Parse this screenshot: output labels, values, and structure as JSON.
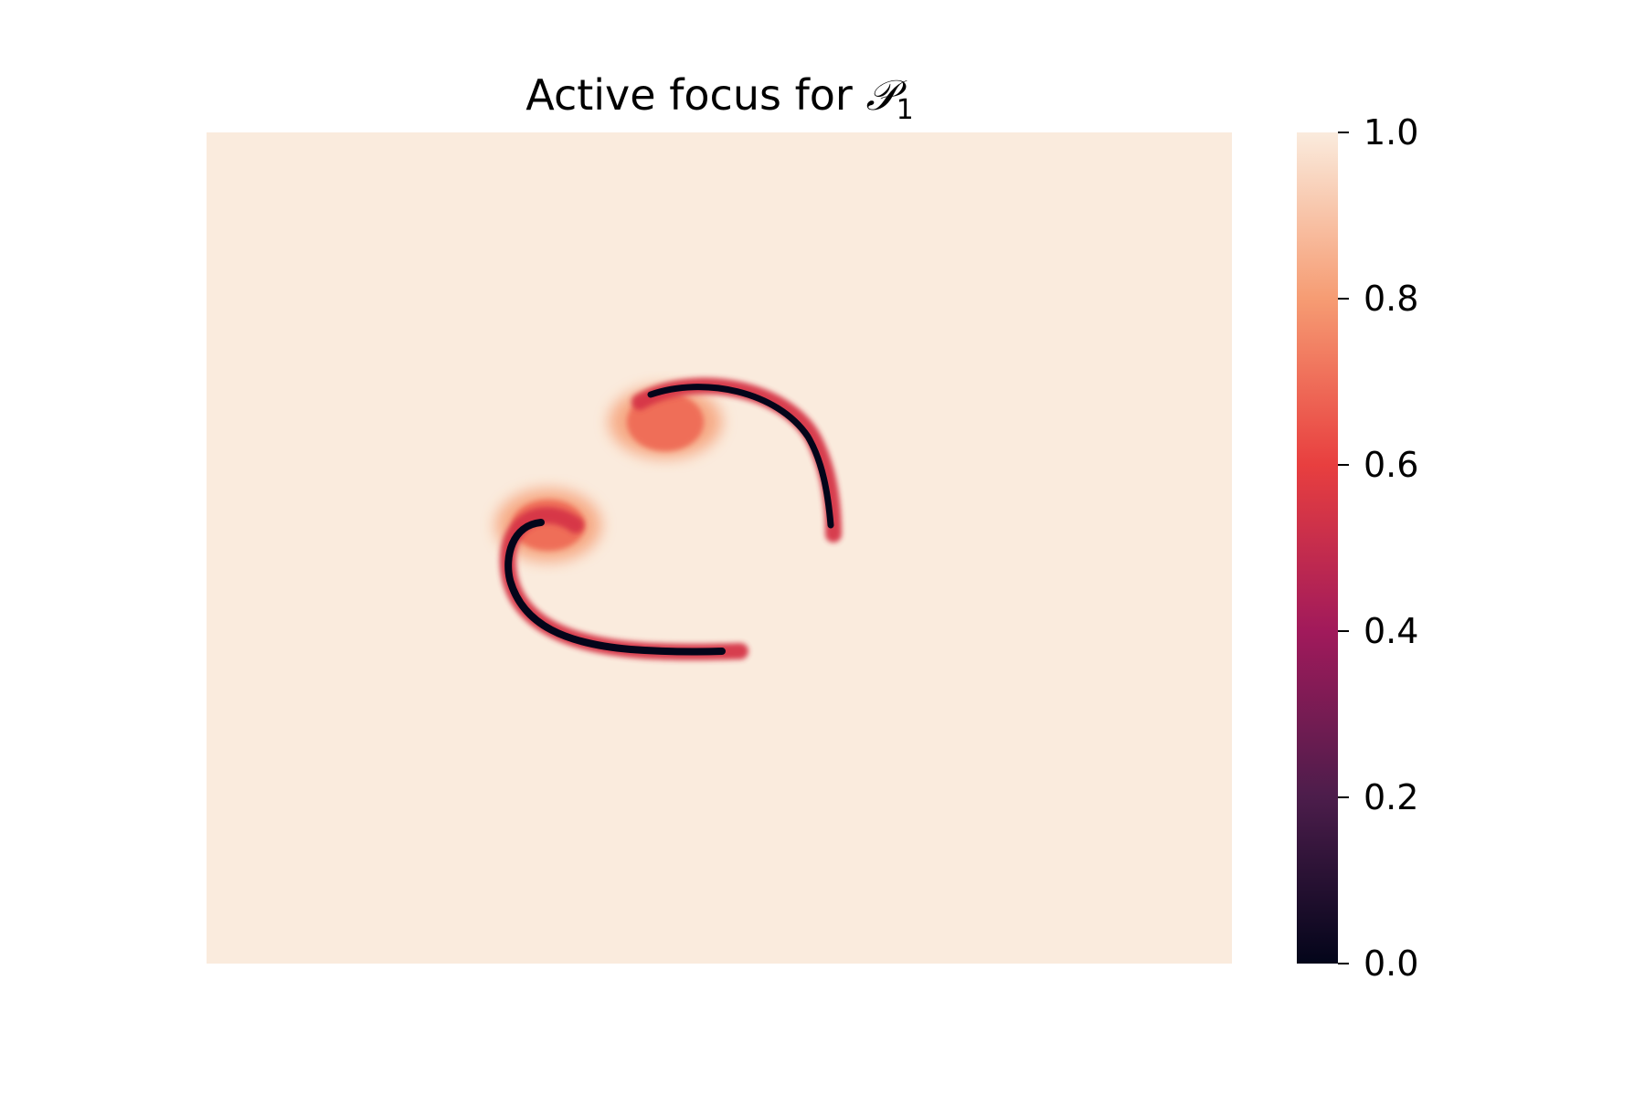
{
  "chart_data": {
    "type": "heatmap",
    "title": {
      "prefix": "Active focus for ",
      "symbol": "𝒫",
      "subscript": "1"
    },
    "xlabel": "",
    "ylabel": "",
    "axes_visible": false,
    "grid": false,
    "background_value": 1.0,
    "colorbar": {
      "range": [
        0.0,
        1.0
      ],
      "ticks": [
        {
          "value": 0.0,
          "label": "0.0"
        },
        {
          "value": 0.2,
          "label": "0.2"
        },
        {
          "value": 0.4,
          "label": "0.4"
        },
        {
          "value": 0.6,
          "label": "0.6"
        },
        {
          "value": 0.8,
          "label": "0.8"
        },
        {
          "value": 1.0,
          "label": "1.0"
        }
      ],
      "placement": "right",
      "colormap": [
        "#03051a",
        "#4c1d4b",
        "#a11a5b",
        "#e83f3f",
        "#f69c73",
        "#faebdd"
      ]
    },
    "features": [
      {
        "name": "upper arc",
        "min_value": 0.0,
        "halo_value": 0.7
      },
      {
        "name": "lower arc",
        "min_value": 0.0,
        "halo_value": 0.7
      }
    ]
  }
}
